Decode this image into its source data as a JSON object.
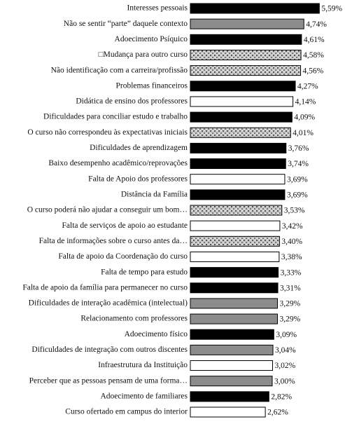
{
  "chart_data": {
    "type": "hbar",
    "categories": [
      "Interesses pessoais",
      "Não se sentir “parte” daquele contexto",
      "Adoecimento Psíquico",
      "□Mudança para outro curso",
      "Não identificação com a carreira/profissão",
      "Problemas financeiros",
      "Didática de ensino dos professores",
      "Dificuldades para conciliar estudo e trabalho",
      "O curso não correspondeu às expectativas iniciais",
      "Dificuldades de aprendizagem",
      "Baixo desempenho acadêmico/reprovações",
      "Falta de Apoio dos professores",
      "Distância da Família",
      "O curso poderá não ajudar a conseguir um bom…",
      "Falta de serviços de apoio ao estudante",
      "Falta de informações sobre o curso antes da…",
      "Falta de apoio da Coordenação do curso",
      "Falta de tempo para estudo",
      "Falta de apoio da família para permanecer no curso",
      "Dificuldades de interação acadêmica (intelectual)",
      "Relacionamento com professores",
      "Adoecimento físico",
      "Dificuldades de integração com outros discentes",
      "Infraestrutura da Instituição",
      "Perceber que as pessoas pensam de uma forma…",
      "Adoecimento de familiares",
      "Curso ofertado em campus do interior"
    ],
    "values": [
      5.59,
      4.74,
      4.61,
      4.58,
      4.56,
      4.27,
      4.14,
      4.09,
      4.01,
      3.76,
      3.74,
      3.69,
      3.69,
      3.53,
      3.42,
      3.4,
      3.38,
      3.33,
      3.31,
      3.29,
      3.29,
      3.09,
      3.04,
      3.02,
      3.0,
      2.82,
      2.62
    ],
    "value_labels": [
      "5,59%",
      "4,74%",
      "4,61%",
      "4,58%",
      "4,56%",
      "4,27%",
      "4,14%",
      "4,09%",
      "4,01%",
      "3,76%",
      "3,74%",
      "3,69%",
      "3,69%",
      "3,53%",
      "3,42%",
      "3,40%",
      "3,38%",
      "3,33%",
      "3,31%",
      "3,29%",
      "3,29%",
      "3,09%",
      "3,04%",
      "3,02%",
      "3,00%",
      "2,82%",
      "2,62%"
    ],
    "colors": [
      "#000000",
      "#8c8c8c",
      "#000000",
      "speckled",
      "speckled",
      "#000000",
      "#ffffff",
      "#000000",
      "speckled",
      "#000000",
      "#000000",
      "#ffffff",
      "#000000",
      "speckled",
      "#ffffff",
      "speckled",
      "#ffffff",
      "#000000",
      "#000000",
      "#8c8c8c",
      "#8c8c8c",
      "#000000",
      "#8c8c8c",
      "#ffffff",
      "#8c8c8c",
      "#000000",
      "#ffffff"
    ],
    "xlim": [
      -1.5,
      6
    ]
  }
}
